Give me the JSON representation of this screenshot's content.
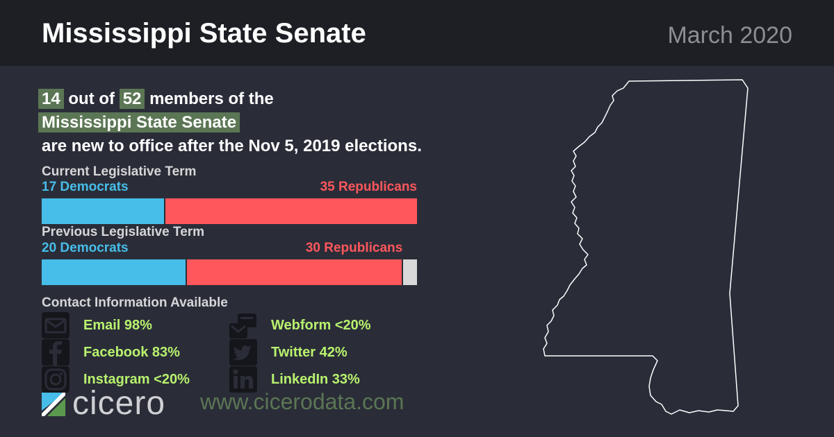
{
  "header": {
    "title": "Mississippi State Senate",
    "date": "March 2020"
  },
  "headline": {
    "new_count": "14",
    "out_of": "out of",
    "total": "52",
    "members_of_the": "members of the",
    "body_name": "Mississippi State Senate",
    "suffix": "are new to office after the Nov 5, 2019 elections."
  },
  "current_term": {
    "label": "Current Legislative Term",
    "dem_label": "17 Democrats",
    "rep_label": "35 Republicans",
    "dem": 17,
    "rep": 35,
    "vacant": 0,
    "total": 52
  },
  "previous_term": {
    "label": "Previous Legislative Term",
    "dem_label": "20 Democrats",
    "rep_label": "30 Republicans",
    "dem": 20,
    "rep": 30,
    "vacant": 2,
    "total": 52
  },
  "contact": {
    "label": "Contact Information Available",
    "items": [
      {
        "icon": "envelope-icon",
        "text": "Email 98%"
      },
      {
        "icon": "webform-icon",
        "text": "Webform <20%"
      },
      {
        "icon": "facebook-icon",
        "text": "Facebook 83%"
      },
      {
        "icon": "twitter-icon",
        "text": "Twitter 42%"
      },
      {
        "icon": "instagram-icon",
        "text": "Instagram <20%"
      },
      {
        "icon": "linkedin-icon",
        "text": "LinkedIn 33%"
      }
    ]
  },
  "footer": {
    "logo_text": "cicero",
    "website": "www.cicerodata.com"
  },
  "colors": {
    "democrat": "#47bde9",
    "republican": "#ff575c",
    "vacant": "#d9d9d9",
    "highlight": "#5b7654",
    "contact_text": "#b9f26e"
  }
}
